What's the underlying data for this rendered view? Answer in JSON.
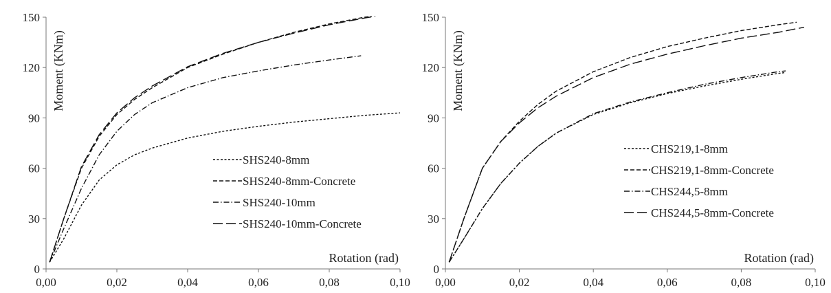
{
  "chart_data": [
    {
      "type": "line",
      "xlabel": "Rotation (rad)",
      "ylabel": "Moment  (KNm)",
      "xlim": [
        0,
        0.1
      ],
      "ylim": [
        0,
        150
      ],
      "x_ticks": [
        "0,00",
        "0,02",
        "0,04",
        "0,06",
        "0,08",
        "0,10"
      ],
      "y_ticks": [
        "0",
        "30",
        "60",
        "90",
        "120",
        "150"
      ],
      "grid": false,
      "legend_position": "center-right",
      "series": [
        {
          "name": "SHS240-8mm",
          "dash": "short-dash",
          "x": [
            0.001,
            0.005,
            0.01,
            0.015,
            0.02,
            0.025,
            0.03,
            0.04,
            0.05,
            0.06,
            0.07,
            0.08,
            0.09,
            0.1
          ],
          "y": [
            4,
            18,
            38,
            53,
            62,
            68,
            72,
            78,
            82,
            85,
            87.5,
            89.5,
            91.5,
            93
          ]
        },
        {
          "name": "SHS240-8mm-Concrete",
          "dash": "medium-dash",
          "x": [
            0.001,
            0.005,
            0.01,
            0.015,
            0.02,
            0.025,
            0.03,
            0.04,
            0.05,
            0.06,
            0.07,
            0.08,
            0.09,
            0.092
          ],
          "y": [
            4,
            30,
            60,
            79,
            92,
            101,
            108,
            120,
            128,
            135,
            141,
            146,
            150,
            150.5
          ]
        },
        {
          "name": "SHS240-10mm",
          "dash": "dash-dot",
          "x": [
            0.001,
            0.005,
            0.01,
            0.015,
            0.02,
            0.025,
            0.03,
            0.04,
            0.05,
            0.06,
            0.07,
            0.08,
            0.089
          ],
          "y": [
            4,
            24,
            48,
            68,
            82,
            92,
            99,
            108,
            114,
            118,
            121.5,
            124.5,
            127
          ]
        },
        {
          "name": "SHS240-10mm-Concrete",
          "dash": "long-dash",
          "x": [
            0.001,
            0.005,
            0.01,
            0.015,
            0.02,
            0.025,
            0.03,
            0.04,
            0.05,
            0.06,
            0.07,
            0.08,
            0.09,
            0.093
          ],
          "y": [
            4,
            30,
            61,
            80,
            93,
            102,
            109,
            120.5,
            128.5,
            135,
            140.5,
            145.5,
            149.5,
            150.5
          ]
        }
      ]
    },
    {
      "type": "line",
      "xlabel": "Rotation (rad)",
      "ylabel": "Moment  (KNm)",
      "xlim": [
        0,
        0.1
      ],
      "ylim": [
        0,
        150
      ],
      "x_ticks": [
        "0,00",
        "0,02",
        "0,04",
        "0,06",
        "0,08",
        "0,10"
      ],
      "y_ticks": [
        "0",
        "30",
        "60",
        "90",
        "120",
        "150"
      ],
      "grid": false,
      "legend_position": "center-right",
      "series": [
        {
          "name": "CHS219,1-8mm",
          "dash": "short-dash",
          "x": [
            0.001,
            0.005,
            0.01,
            0.015,
            0.02,
            0.025,
            0.03,
            0.04,
            0.05,
            0.06,
            0.07,
            0.08,
            0.09,
            0.092
          ],
          "y": [
            4,
            18,
            36,
            51,
            63,
            73,
            81,
            92,
            99,
            104.5,
            109,
            113,
            116.5,
            117
          ]
        },
        {
          "name": "CHS219,1-8mm-Concrete",
          "dash": "medium-dash",
          "x": [
            0.001,
            0.005,
            0.01,
            0.015,
            0.02,
            0.025,
            0.03,
            0.04,
            0.05,
            0.06,
            0.07,
            0.08,
            0.09,
            0.095
          ],
          "y": [
            4,
            30,
            60,
            76,
            88,
            98,
            106,
            117.5,
            126,
            132.5,
            137.5,
            142,
            145.5,
            147
          ]
        },
        {
          "name": "CHS244,5-8mm",
          "dash": "dash-dot",
          "x": [
            0.001,
            0.005,
            0.01,
            0.015,
            0.02,
            0.025,
            0.03,
            0.04,
            0.05,
            0.06,
            0.07,
            0.08,
            0.09,
            0.092
          ],
          "y": [
            4,
            18,
            36,
            51,
            63,
            73,
            81,
            92.5,
            99.5,
            105,
            110,
            114,
            117.5,
            118
          ]
        },
        {
          "name": "CHS244,5-8mm-Concrete",
          "dash": "long-dash",
          "x": [
            0.001,
            0.005,
            0.01,
            0.015,
            0.02,
            0.025,
            0.03,
            0.04,
            0.05,
            0.06,
            0.07,
            0.08,
            0.09,
            0.097
          ],
          "y": [
            4,
            30,
            60,
            76,
            87,
            96,
            103,
            114,
            122,
            128,
            133,
            137.5,
            141,
            144
          ]
        }
      ]
    }
  ]
}
